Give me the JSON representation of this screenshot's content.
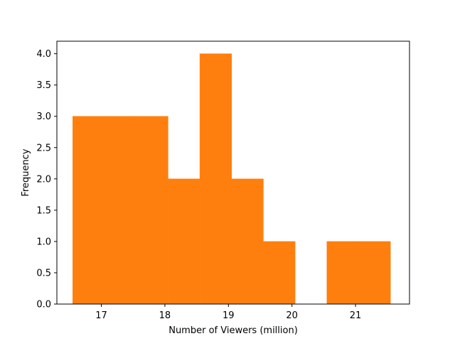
{
  "chart_data": {
    "type": "bar",
    "title": "",
    "xlabel": "Number of Viewers (million)",
    "ylabel": "Frequency",
    "xlim": [
      16.3,
      21.85
    ],
    "ylim": [
      0,
      4.2
    ],
    "grid": false,
    "bar_color": "#ff7f0e",
    "bins": [
      {
        "x0": 16.55,
        "x1": 17.05,
        "value": 3
      },
      {
        "x0": 17.05,
        "x1": 17.55,
        "value": 3
      },
      {
        "x0": 17.55,
        "x1": 18.05,
        "value": 3
      },
      {
        "x0": 18.05,
        "x1": 18.55,
        "value": 2
      },
      {
        "x0": 18.55,
        "x1": 19.05,
        "value": 4
      },
      {
        "x0": 19.05,
        "x1": 19.55,
        "value": 2
      },
      {
        "x0": 19.55,
        "x1": 20.05,
        "value": 1
      },
      {
        "x0": 20.05,
        "x1": 20.55,
        "value": 0
      },
      {
        "x0": 20.55,
        "x1": 21.05,
        "value": 1
      },
      {
        "x0": 21.05,
        "x1": 21.55,
        "value": 1
      }
    ],
    "x_ticks": [
      "17",
      "18",
      "19",
      "20",
      "21"
    ],
    "y_ticks": [
      "0.0",
      "0.5",
      "1.0",
      "1.5",
      "2.0",
      "2.5",
      "3.0",
      "3.5",
      "4.0"
    ]
  }
}
